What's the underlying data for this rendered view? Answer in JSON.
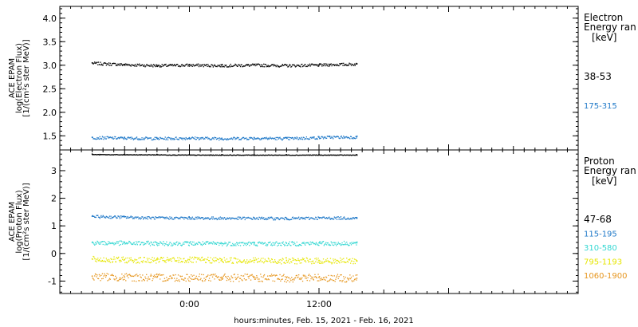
{
  "chart_data": [
    {
      "type": "scatter",
      "panel": "electron",
      "ylabel_lines": [
        "ACE EPAM",
        "log(Electron Flux)",
        "[1/(cm²s ster MeV)]"
      ],
      "ylim": [
        1.2,
        4.25
      ],
      "yticks": [
        "1.5",
        "2.0",
        "2.5",
        "3.0",
        "3.5",
        "4.0"
      ],
      "ytick_values": [
        1.5,
        2.0,
        2.5,
        3.0,
        3.5,
        4.0
      ],
      "legend_title": [
        "Electron",
        "Energy ran"
      ],
      "legend_unit": "keV",
      "grid": false,
      "series": [
        {
          "name": "38-53",
          "color": "#000000",
          "x": [
            -9.0,
            -6.0,
            -3.0,
            0.0,
            3.0,
            6.0,
            9.0,
            12.0,
            13.0,
            15.5
          ],
          "y": [
            3.05,
            3.02,
            3.0,
            3.01,
            3.0,
            3.01,
            3.0,
            3.01,
            3.02,
            3.03
          ]
        },
        {
          "name": "175-315",
          "color": "#1e78c8",
          "x": [
            -9.0,
            -6.0,
            -3.0,
            0.0,
            3.0,
            6.0,
            9.0,
            12.0,
            13.0,
            15.5
          ],
          "y": [
            1.47,
            1.46,
            1.45,
            1.46,
            1.45,
            1.46,
            1.45,
            1.47,
            1.48,
            1.48
          ]
        }
      ]
    },
    {
      "type": "scatter",
      "panel": "proton",
      "ylabel_lines": [
        "ACE EPAM",
        "log(Proton Flux)",
        "[1/(cm²s ster MeV)]"
      ],
      "ylim": [
        -1.45,
        3.75
      ],
      "yticks": [
        "-1",
        "0",
        "1",
        "2",
        "3"
      ],
      "ytick_values": [
        -1,
        0,
        1,
        2,
        3
      ],
      "legend_title": [
        "Proton",
        "Energy ran"
      ],
      "legend_unit": "keV",
      "grid": false,
      "series": [
        {
          "name": "47-68",
          "color": "#000000",
          "x": [
            -9.0,
            -6.0,
            -3.0,
            0.0,
            3.0,
            6.0,
            9.0,
            12.0,
            15.5
          ],
          "y": [
            3.6,
            3.59,
            3.59,
            3.58,
            3.58,
            3.58,
            3.58,
            3.58,
            3.58
          ]
        },
        {
          "name": "115-195",
          "color": "#1e78c8",
          "x": [
            -9.0,
            -6.0,
            -3.0,
            0.0,
            3.0,
            6.0,
            9.0,
            12.0,
            15.5
          ],
          "y": [
            1.35,
            1.33,
            1.3,
            1.3,
            1.29,
            1.29,
            1.28,
            1.3,
            1.3
          ]
        },
        {
          "name": "310-580",
          "color": "#34d7d2",
          "x": [
            -9.0,
            -6.0,
            -3.0,
            0.0,
            3.0,
            6.0,
            9.0,
            12.0,
            15.5
          ],
          "y": [
            0.4,
            0.39,
            0.38,
            0.38,
            0.37,
            0.37,
            0.37,
            0.38,
            0.38
          ]
        },
        {
          "name": "795-1193",
          "color": "#e6e600",
          "x": [
            -9.0,
            -6.0,
            -3.0,
            0.0,
            3.0,
            6.0,
            9.0,
            12.0,
            15.5
          ],
          "y": [
            -0.2,
            -0.22,
            -0.23,
            -0.22,
            -0.23,
            -0.24,
            -0.25,
            -0.25,
            -0.26
          ]
        },
        {
          "name": "1060-1900",
          "color": "#e6961e",
          "x": [
            -9.0,
            -6.0,
            -3.0,
            0.0,
            3.0,
            6.0,
            9.0,
            12.0,
            15.5
          ],
          "y": [
            -0.82,
            -0.85,
            -0.86,
            -0.85,
            -0.86,
            -0.87,
            -0.88,
            -0.86,
            -0.9
          ]
        }
      ]
    }
  ],
  "x_axis": {
    "label": "hours:minutes, Feb. 15, 2021 - Feb. 16, 2021",
    "range_hours": [
      -12.0,
      36.0
    ],
    "ticks": [
      {
        "label": "0:00",
        "value": 0.0
      },
      {
        "label": "12:00",
        "value": 12.0
      }
    ]
  }
}
